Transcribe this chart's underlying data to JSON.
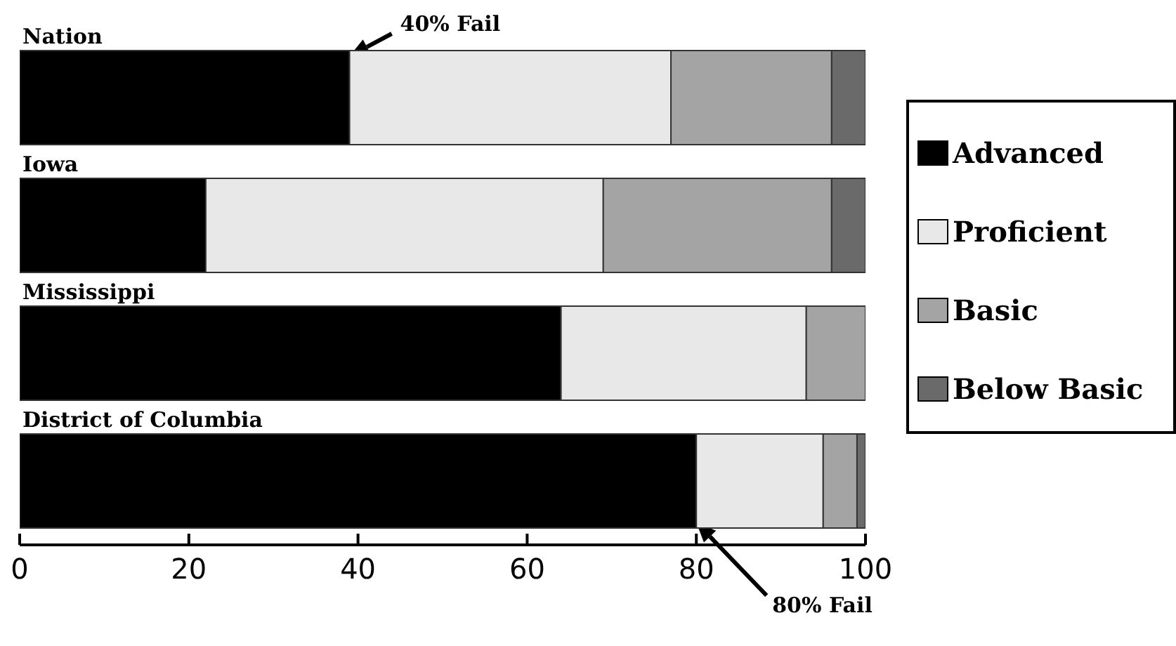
{
  "chart_data": {
    "type": "bar",
    "orientation": "horizontal",
    "stacked": true,
    "categories": [
      "Nation",
      "Iowa",
      "Mississippi",
      "District of Columbia"
    ],
    "series": [
      {
        "name": "Advanced",
        "color": "#000000",
        "values": [
          39,
          22,
          64,
          80
        ]
      },
      {
        "name": "Proficient",
        "color": "#e8e8e8",
        "values": [
          38,
          47,
          29,
          15
        ]
      },
      {
        "name": "Basic",
        "color": "#a4a4a4",
        "values": [
          19,
          27,
          7,
          4
        ]
      },
      {
        "name": "Below Basic",
        "color": "#6a6a6a",
        "values": [
          4,
          4,
          null,
          1
        ]
      }
    ],
    "xlim": [
      0,
      100
    ],
    "xticks": [
      0,
      20,
      40,
      60,
      80,
      100
    ],
    "grid": false,
    "legend": "right",
    "annotations": [
      "40% Fail",
      "80% Fail"
    ]
  }
}
